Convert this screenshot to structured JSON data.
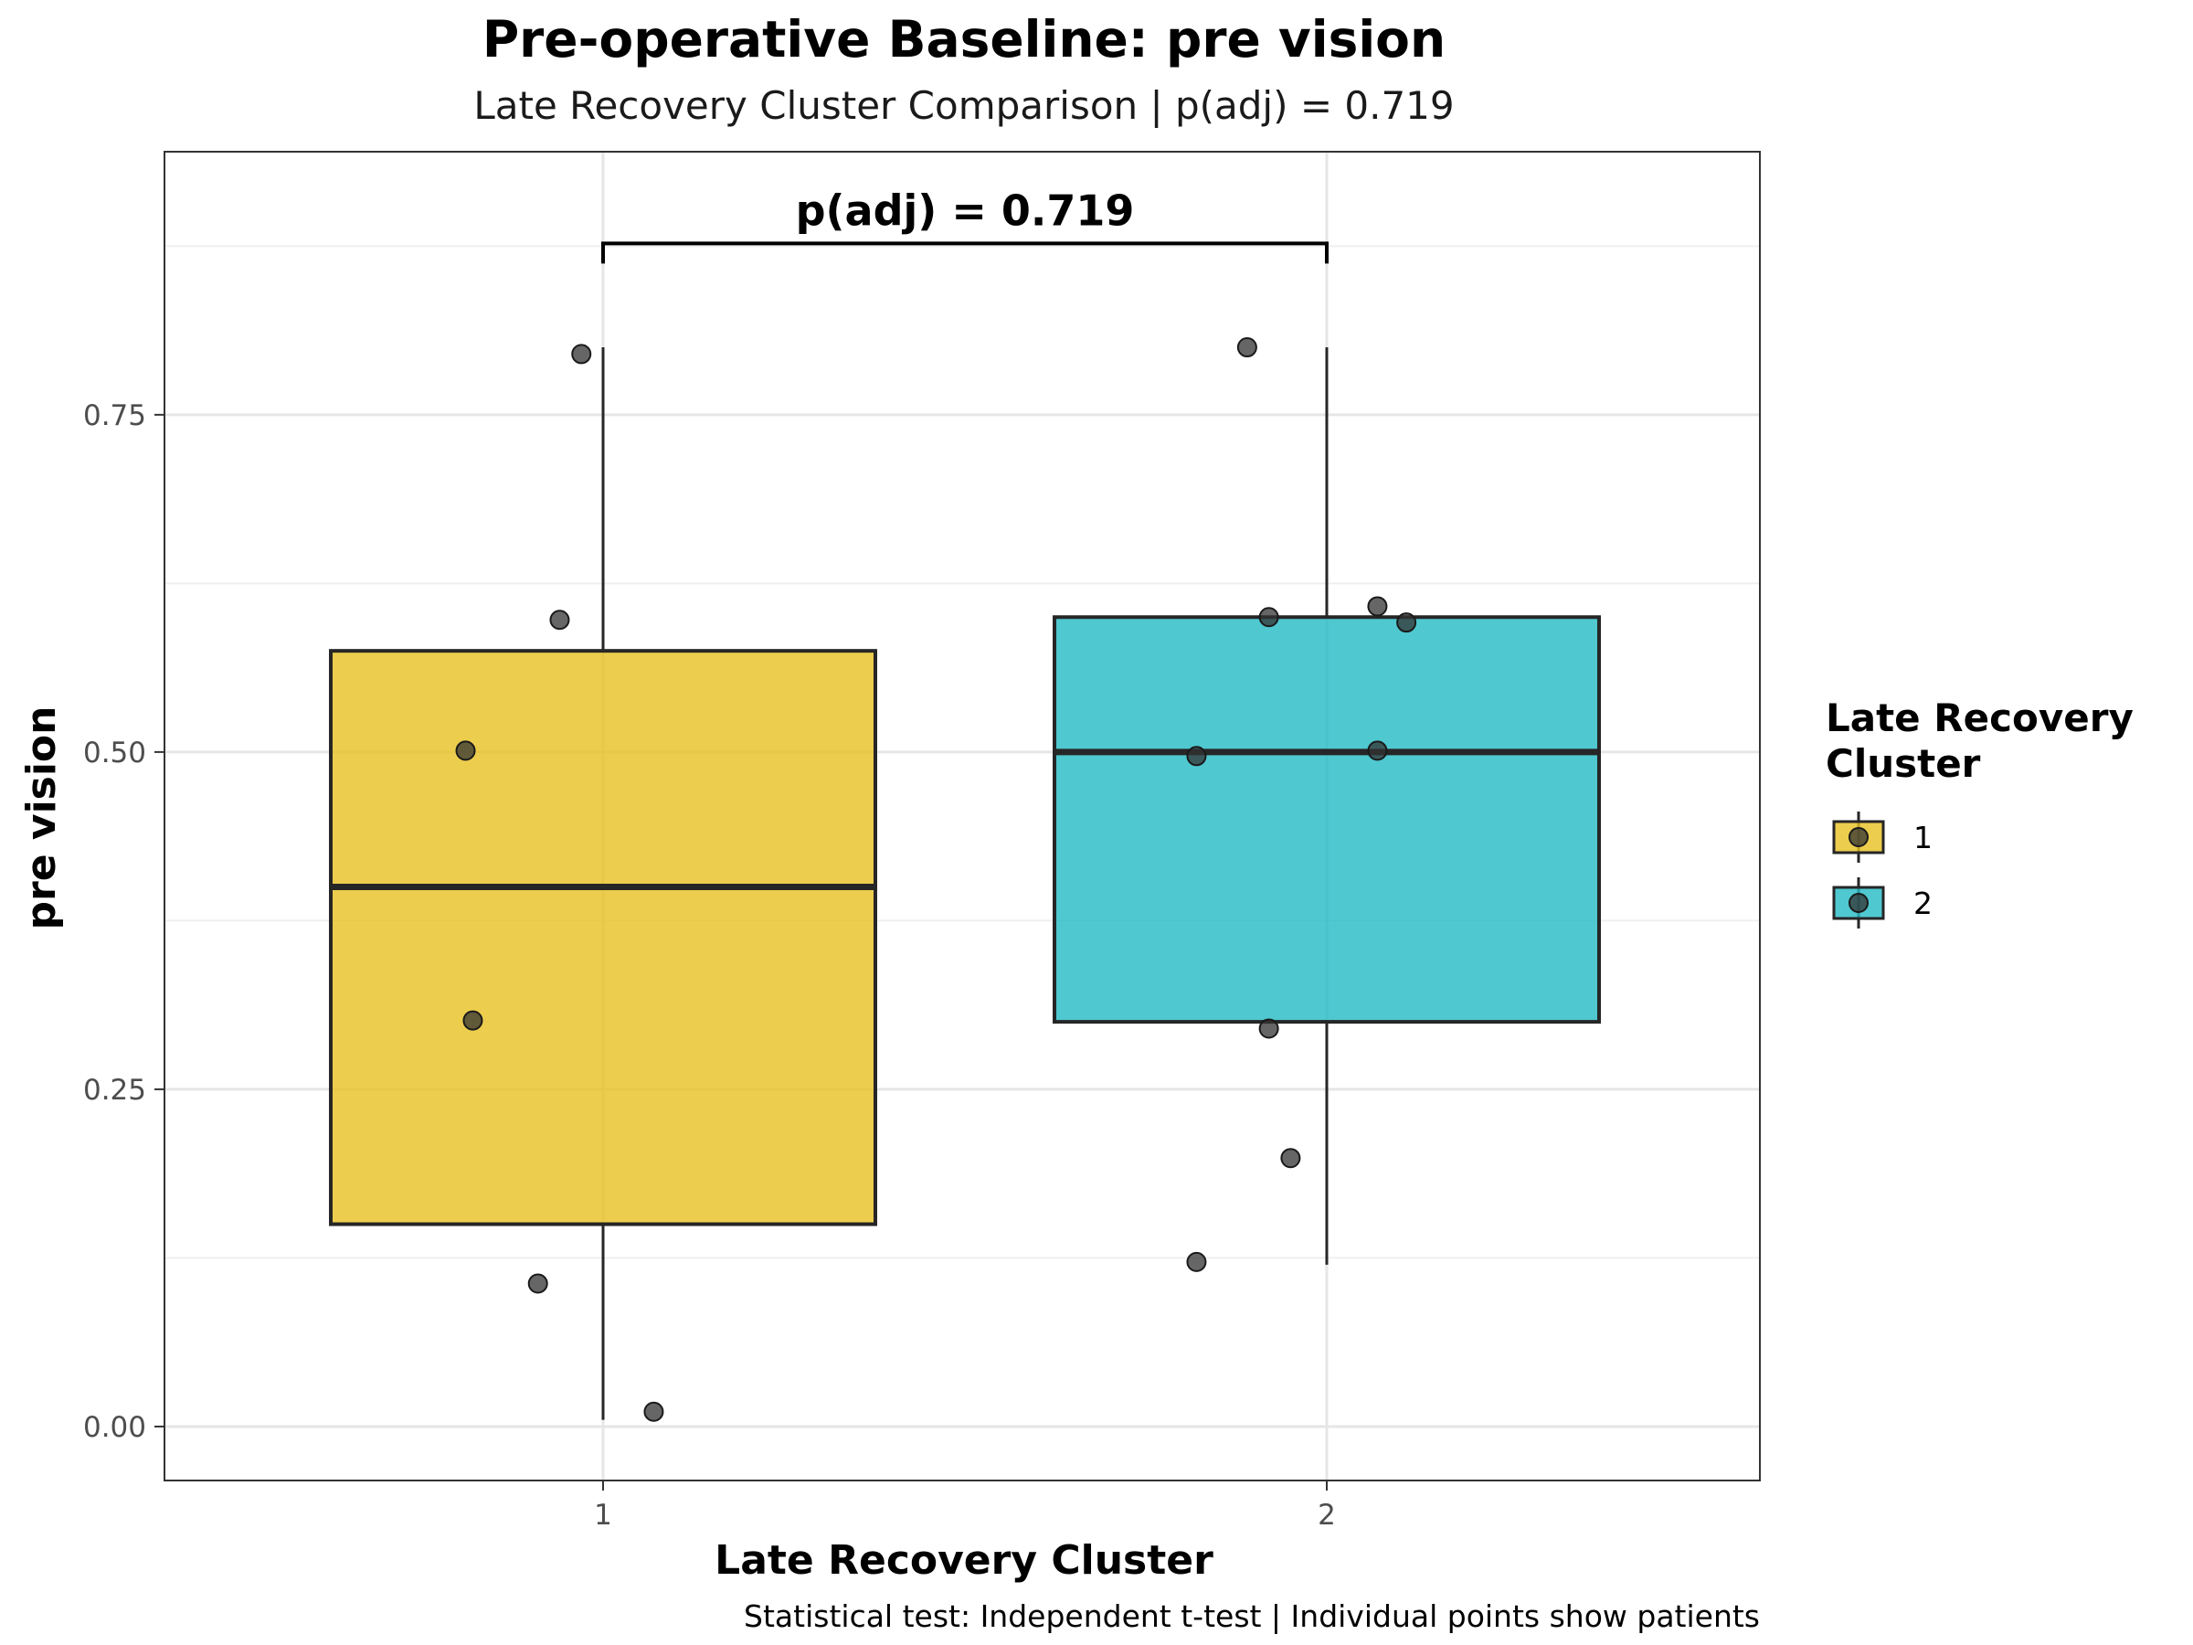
{
  "chart_data": {
    "type": "box",
    "title": "Pre-operative Baseline: pre vision",
    "subtitle": "Late Recovery Cluster Comparison | p(adj) = 0.719",
    "xlabel": "Late Recovery Cluster",
    "ylabel": "pre vision",
    "caption": "Statistical test: Independent t-test | Individual points show patients",
    "categories": [
      "1",
      "2"
    ],
    "ylim": [
      -0.04,
      0.945
    ],
    "y_ticks": [
      0.0,
      0.25,
      0.5,
      0.75
    ],
    "y_tick_labels": [
      "0.00",
      "0.25",
      "0.50",
      "0.75"
    ],
    "grid": true,
    "legend": {
      "title": "Late Recovery Cluster",
      "position": "right",
      "entries": [
        {
          "label": "1",
          "color": "#E7C021"
        },
        {
          "label": "2",
          "color": "#23BAC4"
        }
      ]
    },
    "boxes": [
      {
        "category": "1",
        "whisker_low": 0.005,
        "q1": 0.15,
        "median": 0.4,
        "q3": 0.575,
        "whisker_high": 0.8,
        "color": "#E7C021"
      },
      {
        "category": "2",
        "whisker_low": 0.12,
        "q1": 0.3,
        "median": 0.5,
        "q3": 0.6,
        "whisker_high": 0.8,
        "color": "#23BAC4"
      }
    ],
    "points": [
      {
        "category": "1",
        "jitter": -0.03,
        "y": 0.795
      },
      {
        "category": "1",
        "jitter": -0.06,
        "y": 0.598
      },
      {
        "category": "1",
        "jitter": -0.19,
        "y": 0.501
      },
      {
        "category": "1",
        "jitter": -0.18,
        "y": 0.301
      },
      {
        "category": "1",
        "jitter": -0.09,
        "y": 0.106
      },
      {
        "category": "1",
        "jitter": 0.07,
        "y": 0.011
      },
      {
        "category": "2",
        "jitter": -0.11,
        "y": 0.8
      },
      {
        "category": "2",
        "jitter": -0.08,
        "y": 0.6
      },
      {
        "category": "2",
        "jitter": 0.07,
        "y": 0.608
      },
      {
        "category": "2",
        "jitter": 0.11,
        "y": 0.596
      },
      {
        "category": "2",
        "jitter": -0.18,
        "y": 0.497
      },
      {
        "category": "2",
        "jitter": 0.07,
        "y": 0.501
      },
      {
        "category": "2",
        "jitter": -0.08,
        "y": 0.295
      },
      {
        "category": "2",
        "jitter": -0.05,
        "y": 0.199
      },
      {
        "category": "2",
        "jitter": -0.18,
        "y": 0.122
      }
    ],
    "annotation": {
      "label": "p(adj) = 0.719",
      "from": "1",
      "to": "2",
      "y": 0.877
    }
  }
}
